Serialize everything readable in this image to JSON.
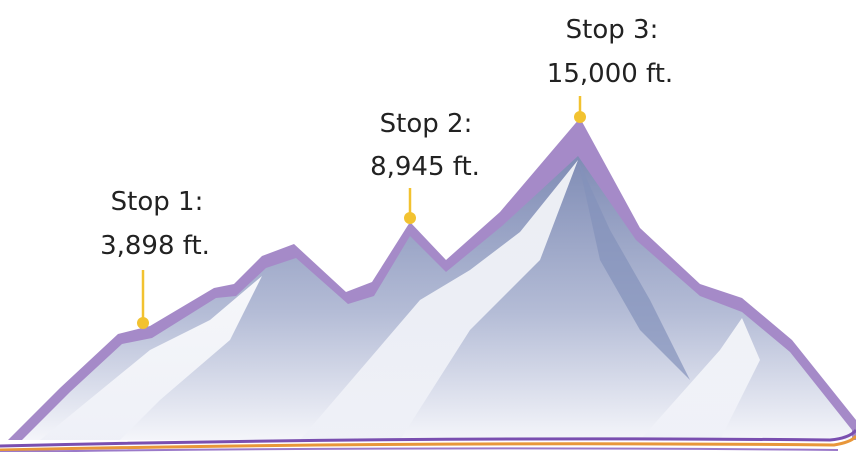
{
  "stops": [
    {
      "name": "Stop 1:",
      "elevation": "3,898 ft."
    },
    {
      "name": "Stop 2:",
      "elevation": "8,945 ft."
    },
    {
      "name": "Stop 3:",
      "elevation": "15,000 ft."
    }
  ]
}
